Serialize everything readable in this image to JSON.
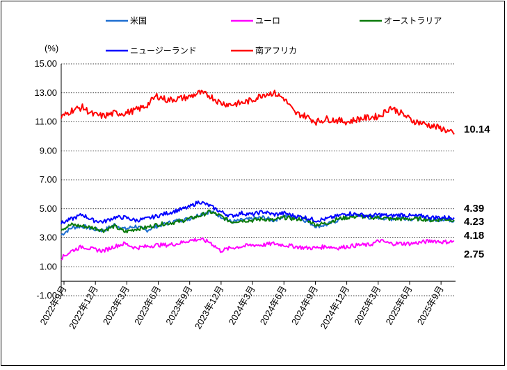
{
  "chart_data": {
    "type": "line",
    "unit_label": "(%)",
    "ylim": [
      -1.0,
      15.0
    ],
    "y_ticks": [
      "15.00",
      "13.00",
      "11.00",
      "9.00",
      "7.00",
      "5.00",
      "3.00",
      "1.00",
      "-1.00"
    ],
    "x_ticks": [
      "2022年9月",
      "2022年12月",
      "2023年3月",
      "2023年6月",
      "2023年9月",
      "2023年12月",
      "2024年3月",
      "2024年6月",
      "2024年9月",
      "2024年12月",
      "2025年3月",
      "2025年6月",
      "2025年9月"
    ],
    "grid": "horizontal dotted",
    "legend": "top",
    "series": [
      {
        "name": "米国",
        "color": "#1f6fd1",
        "values": [
          3.2,
          3.7,
          3.8,
          3.6,
          3.5,
          3.9,
          3.6,
          3.8,
          3.5,
          3.8,
          4.0,
          4.2,
          4.3,
          4.6,
          4.8,
          4.5,
          4.1,
          4.2,
          4.3,
          4.4,
          4.2,
          4.5,
          4.4,
          4.2,
          3.8,
          3.9,
          4.2,
          4.5,
          4.6,
          4.4,
          4.4,
          4.3,
          4.4,
          4.3,
          4.4,
          4.2,
          4.3,
          4.18
        ]
      },
      {
        "name": "ユーロ",
        "color": "#ff00ff",
        "values": [
          1.6,
          2.1,
          2.4,
          2.2,
          2.1,
          2.4,
          2.6,
          2.3,
          2.4,
          2.5,
          2.5,
          2.6,
          2.8,
          2.9,
          2.7,
          2.1,
          2.3,
          2.4,
          2.5,
          2.5,
          2.6,
          2.5,
          2.4,
          2.3,
          2.3,
          2.4,
          2.3,
          2.4,
          2.5,
          2.5,
          2.8,
          2.6,
          2.6,
          2.6,
          2.7,
          2.8,
          2.7,
          2.75
        ]
      },
      {
        "name": "オーストラリア",
        "color": "#0a7a0a",
        "values": [
          3.6,
          3.9,
          3.8,
          3.7,
          3.5,
          3.8,
          3.4,
          3.6,
          3.7,
          3.9,
          4.0,
          4.1,
          4.3,
          4.5,
          4.8,
          4.5,
          4.1,
          4.2,
          4.2,
          4.3,
          4.2,
          4.4,
          4.3,
          4.3,
          3.9,
          4.0,
          4.3,
          4.4,
          4.5,
          4.4,
          4.4,
          4.3,
          4.3,
          4.3,
          4.3,
          4.2,
          4.3,
          4.23
        ]
      },
      {
        "name": "ニュージーランド",
        "color": "#0000ff",
        "values": [
          4.0,
          4.3,
          4.6,
          4.2,
          4.1,
          4.4,
          4.4,
          4.2,
          4.3,
          4.5,
          4.7,
          4.9,
          5.1,
          5.5,
          5.2,
          4.8,
          4.5,
          4.7,
          4.6,
          4.8,
          4.6,
          4.7,
          4.5,
          4.4,
          4.2,
          4.3,
          4.5,
          4.7,
          4.6,
          4.5,
          4.6,
          4.5,
          4.6,
          4.5,
          4.5,
          4.4,
          4.4,
          4.39
        ]
      },
      {
        "name": "南アフリカ",
        "color": "#ff0000",
        "values": [
          11.3,
          11.8,
          12.0,
          11.5,
          11.4,
          11.6,
          11.6,
          11.8,
          12.1,
          12.8,
          12.5,
          12.6,
          12.7,
          13.0,
          12.8,
          12.3,
          12.2,
          12.3,
          12.5,
          12.9,
          13.0,
          12.6,
          11.6,
          11.4,
          11.0,
          11.2,
          11.1,
          11.0,
          11.2,
          11.3,
          11.4,
          12.0,
          11.6,
          11.1,
          10.9,
          10.7,
          10.5,
          10.14
        ]
      }
    ],
    "end_labels": [
      {
        "text": "10.14",
        "value": 10.14
      },
      {
        "text": "4.39",
        "value": 4.39
      },
      {
        "text": "4.23",
        "value": 4.23
      },
      {
        "text": "4.18",
        "value": 4.18
      },
      {
        "text": "2.75",
        "value": 2.75
      }
    ]
  }
}
